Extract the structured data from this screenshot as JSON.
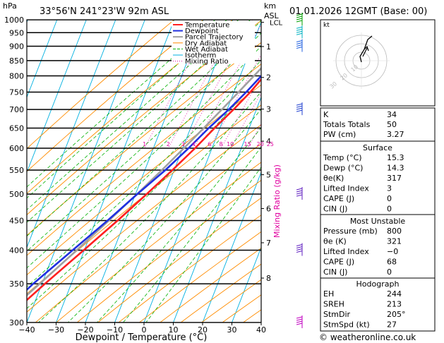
{
  "chart_data": {
    "type": "skew-t",
    "header": {
      "hpa": "hPa",
      "location": "33°56'N  241°23'W  92m  ASL",
      "km": "km",
      "asl": "ASL",
      "datetime": "01.01.2026  12GMT  (Base: 00)"
    },
    "xlabel": "Dewpoint / Temperature (°C)",
    "ylabel_right": "Mixing Ratio (g/kg)",
    "pressure_levels": [
      300,
      350,
      400,
      450,
      500,
      550,
      600,
      650,
      700,
      750,
      800,
      850,
      900,
      950,
      1000
    ],
    "temperature_ticks": [
      -40,
      -30,
      -20,
      -10,
      0,
      10,
      20,
      30,
      40
    ],
    "xlim": [
      -40,
      40
    ],
    "ylim": [
      1000,
      300
    ],
    "km_ticks": [
      {
        "label": "8",
        "p": 358
      },
      {
        "label": "7",
        "p": 412
      },
      {
        "label": "6",
        "p": 472
      },
      {
        "label": "5",
        "p": 540
      },
      {
        "label": "4",
        "p": 617
      },
      {
        "label": "3",
        "p": 701
      },
      {
        "label": "2",
        "p": 795
      },
      {
        "label": "1",
        "p": 899
      }
    ],
    "lcl_label": "LCL",
    "lcl_pressure": 990,
    "mixing_ratio_labels": [
      "1",
      "2",
      "3",
      "4",
      "6",
      "8",
      "10",
      "15",
      "20",
      "25"
    ],
    "mixing_ratio_values": [
      1,
      2,
      3,
      4,
      6,
      8,
      10,
      15,
      20,
      25
    ],
    "legend": [
      "Temperature",
      "Dewpoint",
      "Parcel Trajectory",
      "Dry Adiabat",
      "Wet Adiabat",
      "Isotherm",
      "Mixing Ratio"
    ],
    "colors": {
      "temperature": "#ff2020",
      "dewpoint": "#2030e0",
      "parcel": "#a0a0a0",
      "dry_adiabat": "#ff8c00",
      "wet_adiabat": "#00b000",
      "isotherm": "#00b0e0",
      "mixing_ratio": "#e000a0"
    },
    "series": [
      {
        "name": "Temperature",
        "p": [
          1000,
          950,
          900,
          850,
          800,
          750,
          700,
          650,
          600,
          550,
          500,
          450,
          400,
          350,
          300
        ],
        "t": [
          15.3,
          13.6,
          11.8,
          10.3,
          8.2,
          5.6,
          2.2,
          -1.8,
          -5.8,
          -10.6,
          -16.2,
          -22.6,
          -30.2,
          -39.0,
          -48.5
        ]
      },
      {
        "name": "Dewpoint",
        "p": [
          1000,
          950,
          900,
          850,
          800,
          750,
          700,
          650,
          600,
          550,
          500,
          450,
          400,
          350,
          300
        ],
        "t": [
          14.3,
          12.8,
          11.0,
          9.4,
          7.2,
          4.2,
          0.6,
          -3.8,
          -8.0,
          -13.0,
          -19.4,
          -26.0,
          -34.0,
          -43.0,
          -52.0
        ]
      },
      {
        "name": "Parcel Trajectory",
        "p": [
          1000,
          950,
          900,
          850,
          800,
          750,
          700,
          650,
          600,
          550,
          500,
          450,
          400,
          350,
          300
        ],
        "t": [
          15.3,
          12.9,
          10.3,
          7.6,
          4.7,
          1.6,
          -1.8,
          -5.5,
          -9.6,
          -14.2,
          -19.5,
          -25.6,
          -32.6,
          -40.8,
          -50.5
        ]
      }
    ],
    "wind_barbs_pressures": [
      300,
      400,
      500,
      700,
      900,
      950,
      1000
    ],
    "hodograph": {
      "label": "kt",
      "ring_labels": [
        "10",
        "20",
        "30"
      ]
    }
  },
  "indices": {
    "rows": [
      {
        "label": "K",
        "value": "34"
      },
      {
        "label": "Totals Totals",
        "value": "50"
      },
      {
        "label": "PW (cm)",
        "value": "3.27"
      }
    ]
  },
  "surface": {
    "title": "Surface",
    "rows": [
      {
        "label": "Temp (°C)",
        "value": "15.3"
      },
      {
        "label": "Dewp (°C)",
        "value": "14.3"
      },
      {
        "label": "θe(K)",
        "value": "317"
      },
      {
        "label": "Lifted Index",
        "value": "3"
      },
      {
        "label": "CAPE (J)",
        "value": "0"
      },
      {
        "label": "CIN (J)",
        "value": "0"
      }
    ]
  },
  "most_unstable": {
    "title": "Most Unstable",
    "rows": [
      {
        "label": "Pressure (mb)",
        "value": "800"
      },
      {
        "label": "θe (K)",
        "value": "321"
      },
      {
        "label": "Lifted Index",
        "value": "−0"
      },
      {
        "label": "CAPE (J)",
        "value": "68"
      },
      {
        "label": "CIN (J)",
        "value": "0"
      }
    ]
  },
  "hodograph_table": {
    "title": "Hodograph",
    "rows": [
      {
        "label": "EH",
        "value": "244"
      },
      {
        "label": "SREH",
        "value": "213"
      },
      {
        "label": "StmDir",
        "value": "205°"
      },
      {
        "label": "StmSpd (kt)",
        "value": "27"
      }
    ]
  },
  "credit": "© weatheronline.co.uk"
}
